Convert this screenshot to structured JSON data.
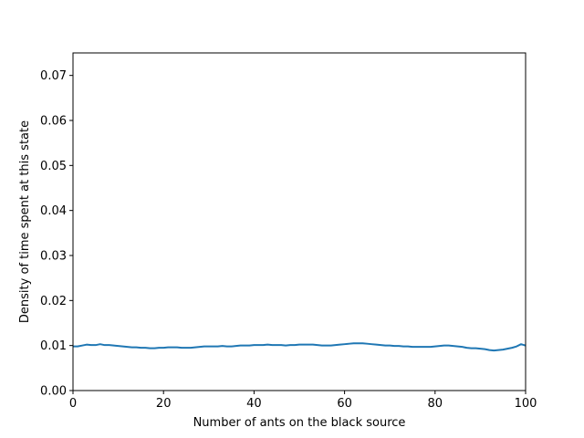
{
  "chart_data": {
    "type": "line",
    "title": "",
    "xlabel": "Number of ants on the black source",
    "ylabel": "Density of time spent at this state",
    "xlim": [
      0,
      100
    ],
    "ylim": [
      0,
      0.075
    ],
    "xticks": [
      0,
      20,
      40,
      60,
      80,
      100
    ],
    "xtick_labels": [
      "0",
      "20",
      "40",
      "60",
      "80",
      "100"
    ],
    "yticks": [
      0,
      0.01,
      0.02,
      0.03,
      0.04,
      0.05,
      0.06,
      0.07
    ],
    "ytick_labels": [
      "0.00",
      "0.01",
      "0.02",
      "0.03",
      "0.04",
      "0.05",
      "0.06",
      "0.07"
    ],
    "grid": false,
    "legend": "none",
    "series": [
      {
        "color": "#1f77b4",
        "x": [
          0,
          1,
          2,
          3,
          4,
          5,
          6,
          7,
          8,
          9,
          10,
          11,
          12,
          13,
          14,
          15,
          16,
          17,
          18,
          19,
          20,
          21,
          22,
          23,
          24,
          25,
          26,
          27,
          28,
          29,
          30,
          31,
          32,
          33,
          34,
          35,
          36,
          37,
          38,
          39,
          40,
          41,
          42,
          43,
          44,
          45,
          46,
          47,
          48,
          49,
          50,
          51,
          52,
          53,
          54,
          55,
          56,
          57,
          58,
          59,
          60,
          61,
          62,
          63,
          64,
          65,
          66,
          67,
          68,
          69,
          70,
          71,
          72,
          73,
          74,
          75,
          76,
          77,
          78,
          79,
          80,
          81,
          82,
          83,
          84,
          85,
          86,
          87,
          88,
          89,
          90,
          91,
          92,
          93,
          94,
          95,
          96,
          97,
          98,
          99,
          100
        ],
        "y": [
          0.0098,
          0.0098,
          0.01,
          0.0102,
          0.0101,
          0.0101,
          0.0103,
          0.0101,
          0.0101,
          0.01,
          0.0099,
          0.0098,
          0.0097,
          0.0096,
          0.0096,
          0.0095,
          0.0095,
          0.0094,
          0.0094,
          0.0095,
          0.0095,
          0.0096,
          0.0096,
          0.0096,
          0.0095,
          0.0095,
          0.0095,
          0.0096,
          0.0097,
          0.0098,
          0.0098,
          0.0098,
          0.0098,
          0.0099,
          0.0098,
          0.0098,
          0.0099,
          0.01,
          0.01,
          0.01,
          0.0101,
          0.0101,
          0.0101,
          0.0102,
          0.0101,
          0.0101,
          0.0101,
          0.01,
          0.0101,
          0.0101,
          0.0102,
          0.0102,
          0.0102,
          0.0102,
          0.0101,
          0.01,
          0.01,
          0.01,
          0.0101,
          0.0102,
          0.0103,
          0.0104,
          0.0105,
          0.0105,
          0.0105,
          0.0104,
          0.0103,
          0.0102,
          0.0101,
          0.01,
          0.01,
          0.0099,
          0.0099,
          0.0098,
          0.0098,
          0.0097,
          0.0097,
          0.0097,
          0.0097,
          0.0097,
          0.0098,
          0.0099,
          0.01,
          0.01,
          0.0099,
          0.0098,
          0.0097,
          0.0095,
          0.0094,
          0.0094,
          0.0093,
          0.0092,
          0.009,
          0.0089,
          0.009,
          0.0091,
          0.0093,
          0.0095,
          0.0098,
          0.0103,
          0.01
        ]
      }
    ]
  }
}
